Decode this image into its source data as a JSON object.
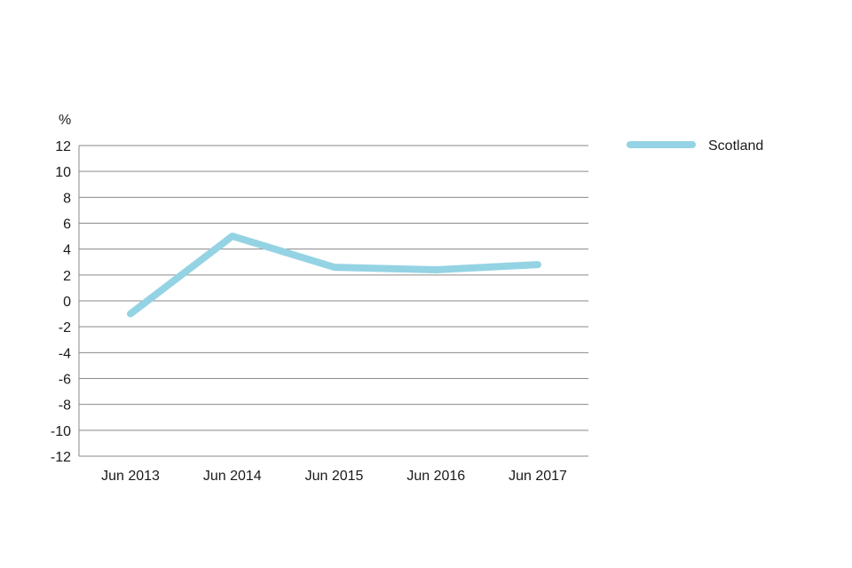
{
  "chart_data": {
    "type": "line",
    "title": "",
    "xlabel": "",
    "ylabel": "%",
    "categories": [
      "Jun 2013",
      "Jun 2014",
      "Jun 2015",
      "Jun 2016",
      "Jun 2017"
    ],
    "series": [
      {
        "name": "Scotland",
        "color": "#94d3e3",
        "values": [
          -1.0,
          5.0,
          2.6,
          2.4,
          2.8
        ]
      }
    ],
    "ylim": [
      -12,
      12
    ],
    "yticks": [
      12,
      10,
      8,
      6,
      4,
      2,
      0,
      -2,
      -4,
      -6,
      -8,
      -10,
      -12
    ],
    "grid": true,
    "legend_position": "top-right"
  }
}
